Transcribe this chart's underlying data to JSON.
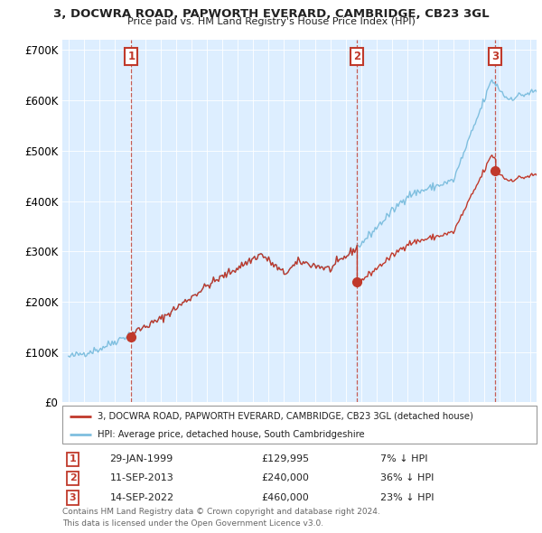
{
  "title": "3, DOCWRA ROAD, PAPWORTH EVERARD, CAMBRIDGE, CB23 3GL",
  "subtitle": "Price paid vs. HM Land Registry's House Price Index (HPI)",
  "legend_line1": "3, DOCWRA ROAD, PAPWORTH EVERARD, CAMBRIDGE, CB23 3GL (detached house)",
  "legend_line2": "HPI: Average price, detached house, South Cambridgeshire",
  "sales": [
    {
      "num": 1,
      "date_num": 1999.08,
      "price": 129995,
      "pct": "7% ↓ HPI"
    },
    {
      "num": 2,
      "date_num": 2013.71,
      "price": 240000,
      "pct": "36% ↓ HPI"
    },
    {
      "num": 3,
      "date_num": 2022.71,
      "price": 460000,
      "pct": "23% ↓ HPI"
    }
  ],
  "sale_dates_text": [
    "29-JAN-1999",
    "11-SEP-2013",
    "14-SEP-2022"
  ],
  "sale_prices_text": [
    "£129,995",
    "£240,000",
    "£460,000"
  ],
  "hpi_color": "#7fbfdf",
  "price_color": "#c0392b",
  "vline_color": "#c0392b",
  "plot_bg_color": "#ddeeff",
  "bg_color": "#ffffff",
  "grid_color": "#ffffff",
  "ylim": [
    0,
    720000
  ],
  "xlim_left": 1994.6,
  "xlim_right": 2025.4,
  "yticks": [
    0,
    100000,
    200000,
    300000,
    400000,
    500000,
    600000,
    700000
  ],
  "ytick_labels": [
    "£0",
    "£100K",
    "£200K",
    "£300K",
    "£400K",
    "£500K",
    "£600K",
    "£700K"
  ],
  "footer_line1": "Contains HM Land Registry data © Crown copyright and database right 2024.",
  "footer_line2": "This data is licensed under the Open Government Licence v3.0."
}
